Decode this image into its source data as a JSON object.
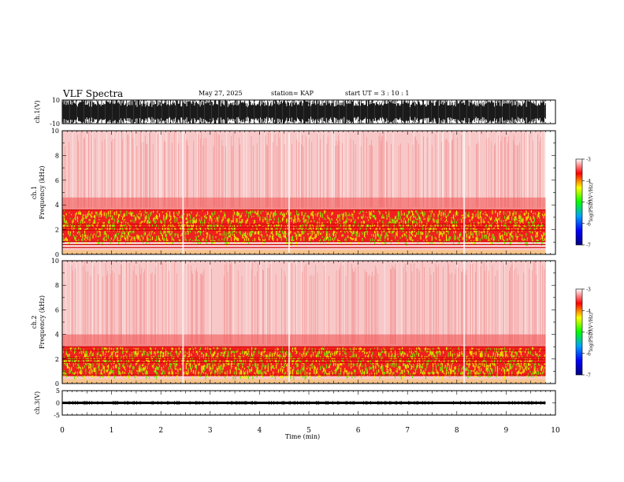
{
  "header": {
    "title": "VLF Spectra",
    "date": "May 27, 2025",
    "station": "station= KAP",
    "start": "start  UT  =   3  : 10 : 1"
  },
  "chart_data": [
    {
      "type": "line",
      "name": "ch1-waveform",
      "ylabel": "ch.1(V)",
      "ylim": [
        -10,
        10
      ],
      "yticklabels": [
        "10",
        "-10"
      ],
      "xlim": [
        0,
        10
      ],
      "description_values": {
        "min": -10,
        "max": 10
      }
    },
    {
      "type": "heatmap",
      "name": "ch1-spectrogram",
      "ylabel": "ch.1\nFrequency (kHz)",
      "ylabel_lines": [
        "ch.1",
        "Frequency  (kHz)"
      ],
      "ylim": [
        0,
        10
      ],
      "yticklabels": [
        "0",
        "2",
        "4",
        "6",
        "8",
        "10"
      ],
      "xlim": [
        0,
        10
      ],
      "data_end_min": 9.8,
      "bands_khz": [
        {
          "from": 1.0,
          "to": 3.6,
          "level": -4.8
        }
      ],
      "lines_khz": [
        0.55,
        0.8,
        1.05,
        1.95,
        2.2,
        2.45,
        3.6
      ],
      "colorbar": {
        "label": "log(PSD)(V²/Hz)",
        "min": -7,
        "max": -3,
        "ticks": [
          "-3",
          "-4",
          "-5",
          "-6",
          "-7"
        ]
      }
    },
    {
      "type": "heatmap",
      "name": "ch2-spectrogram",
      "ylabel_lines": [
        "ch.2",
        "Frequency  (kHz)"
      ],
      "ylim": [
        0,
        10
      ],
      "yticklabels": [
        "0",
        "2",
        "4",
        "6",
        "8",
        "10"
      ],
      "xlim": [
        0,
        10
      ],
      "data_end_min": 9.8,
      "bands_khz": [
        {
          "from": 0.6,
          "to": 3.0,
          "level": -4.8
        }
      ],
      "lines_khz": [
        0.7,
        1.7,
        1.95,
        2.1,
        2.7,
        3.0
      ],
      "colorbar": {
        "label": "log(PSD)(V²/Hz)",
        "min": -7,
        "max": -3,
        "ticks": [
          "-3",
          "-4",
          "-5",
          "-6",
          "-7"
        ]
      }
    },
    {
      "type": "line",
      "name": "ch3-waveform",
      "ylabel": "ch.3(V)",
      "ylim": [
        -5,
        5
      ],
      "yticklabels": [
        "5",
        "0",
        "-5"
      ],
      "xlim": [
        0,
        10
      ],
      "band_v": [
        -0.5,
        0.5
      ]
    }
  ],
  "xaxis": {
    "label": "Time  (min)",
    "ticks": [
      "0",
      "1",
      "2",
      "3",
      "4",
      "5",
      "6",
      "7",
      "8",
      "9",
      "10"
    ]
  },
  "colors": {
    "psd_scale": [
      "#000080",
      "#0000ff",
      "#00a0ff",
      "#00ff00",
      "#ffff00",
      "#ff0000",
      "#ffffff"
    ]
  }
}
